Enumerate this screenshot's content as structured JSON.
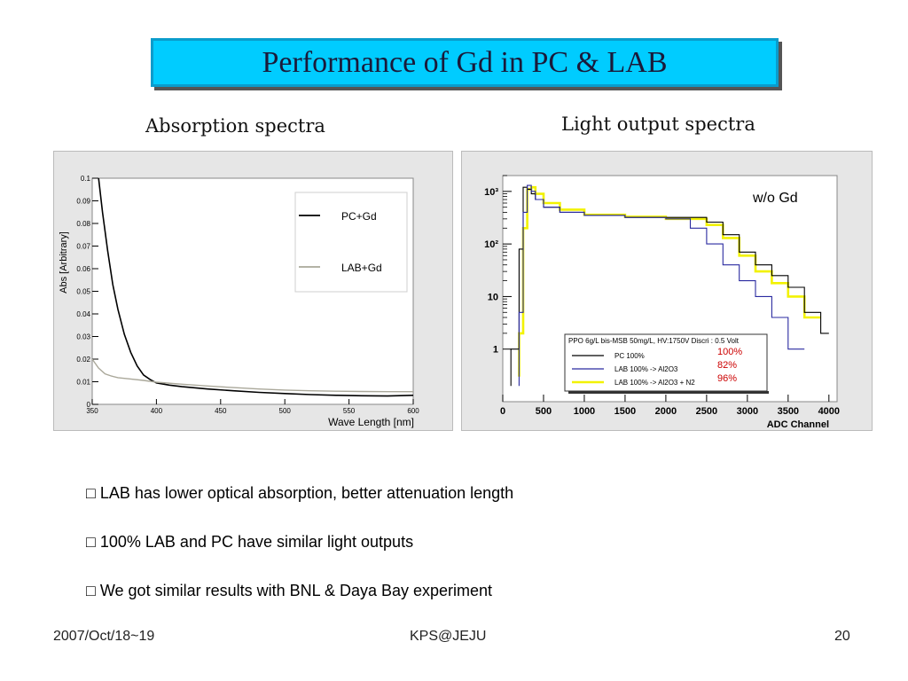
{
  "slide": {
    "title": "Performance of Gd in PC & LAB",
    "captions": {
      "left": "Absorption spectra",
      "right": "Light output spectra"
    },
    "bullets": [
      "□ LAB has lower optical absorption, better attenuation length",
      "□ 100% LAB and PC have similar light outputs",
      "□ We got similar results with BNL & Daya Bay experiment"
    ],
    "footer": {
      "date": "2007/Oct/18~19",
      "venue": "KPS@JEJU",
      "page": "20"
    }
  },
  "chart_data": [
    {
      "type": "line",
      "xlabel": "Wave Length [nm]",
      "ylabel": "Abs [Arbitrary]",
      "xlim": [
        350,
        600
      ],
      "ylim": [
        0,
        0.1
      ],
      "xticks": [
        "350",
        "400",
        "450",
        "500",
        "550",
        "600"
      ],
      "yticks": [
        "0",
        "0.01",
        "0.02",
        "0.03",
        "0.04",
        "0.05",
        "0.06",
        "0.07",
        "0.08",
        "0.09",
        "0.1"
      ],
      "legend_position": "top-right",
      "series": [
        {
          "name": "PC+Gd",
          "color": "#000000",
          "x": [
            355,
            358,
            362,
            366,
            370,
            375,
            380,
            385,
            390,
            395,
            400,
            410,
            420,
            440,
            460,
            480,
            500,
            520,
            540,
            560,
            580,
            600
          ],
          "y": [
            0.1,
            0.085,
            0.068,
            0.053,
            0.042,
            0.031,
            0.023,
            0.017,
            0.013,
            0.011,
            0.0095,
            0.0085,
            0.0078,
            0.0068,
            0.006,
            0.0053,
            0.0048,
            0.0043,
            0.004,
            0.0038,
            0.0037,
            0.004
          ]
        },
        {
          "name": "LAB+Gd",
          "color": "#aaa89a",
          "x": [
            350,
            355,
            360,
            365,
            370,
            380,
            390,
            400,
            420,
            440,
            460,
            480,
            500,
            520,
            540,
            560,
            580,
            600
          ],
          "y": [
            0.02,
            0.016,
            0.0135,
            0.0125,
            0.0118,
            0.0112,
            0.0106,
            0.0098,
            0.0089,
            0.0081,
            0.0074,
            0.0068,
            0.0063,
            0.006,
            0.0058,
            0.0057,
            0.0056,
            0.0056
          ]
        }
      ]
    },
    {
      "type": "line",
      "xlabel": "ADC Channel",
      "scale": "log-y",
      "xlim": [
        0,
        4100
      ],
      "ylim": [
        0.1,
        2000
      ],
      "xticks": [
        "0",
        "500",
        "1000",
        "1500",
        "2000",
        "2500",
        "3000",
        "3500",
        "4000"
      ],
      "yticks": [
        "1",
        "10",
        "10²",
        "10³"
      ],
      "annotation": "w/o Gd",
      "legend_title": "PPO 6g/L bis-MSB 50mg/L, HV:1750V Discri : 0.5 Volt",
      "series": [
        {
          "name": "PC  100%",
          "color": "#000000",
          "ratio": "100%",
          "ratio_color": "#cc0000",
          "x": [
            100,
            200,
            250,
            300,
            350,
            400,
            500,
            700,
            1000,
            1500,
            2000,
            2500,
            2700,
            2900,
            3100,
            3300,
            3500,
            3700,
            3900,
            4000
          ],
          "y": [
            0.2,
            1,
            80,
            1200,
            1100,
            900,
            700,
            500,
            400,
            350,
            320,
            320,
            260,
            150,
            70,
            40,
            25,
            15,
            5,
            2
          ]
        },
        {
          "name": "LAB 100% -> Al2O3",
          "color": "#2a2aa0",
          "ratio": "82%",
          "ratio_color": "#cc0000",
          "x": [
            200,
            250,
            300,
            350,
            400,
            500,
            700,
            1000,
            1500,
            2000,
            2300,
            2500,
            2700,
            2900,
            3100,
            3300,
            3500,
            3700
          ],
          "y": [
            0.2,
            5,
            400,
            1300,
            1000,
            700,
            500,
            400,
            350,
            320,
            300,
            200,
            100,
            40,
            20,
            10,
            4,
            1
          ]
        },
        {
          "name": "LAB 100% -> Al2O3 + N2",
          "color": "#f2f200",
          "ratio": "96%",
          "ratio_color": "#cc0000",
          "x": [
            200,
            250,
            300,
            350,
            400,
            500,
            700,
            1000,
            1500,
            2000,
            2500,
            2700,
            2900,
            3100,
            3300,
            3500,
            3700,
            3900
          ],
          "y": [
            0.3,
            2,
            200,
            1100,
            1200,
            900,
            600,
            450,
            360,
            330,
            300,
            230,
            130,
            60,
            30,
            18,
            10,
            4
          ]
        }
      ]
    }
  ]
}
